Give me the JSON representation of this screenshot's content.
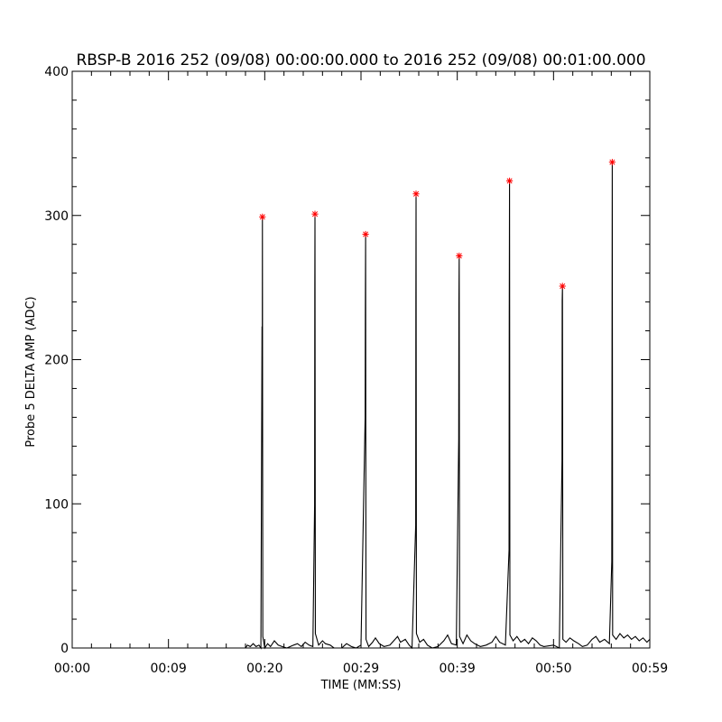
{
  "chart_data": {
    "type": "line",
    "title": "RBSP-B 2016 252 (09/08) 00:00:00.000 to 2016 252 (09/08) 00:01:00.000",
    "xlabel": "TIME (MM:SS)",
    "ylabel": "Probe 5 DELTA AMP (ADC)",
    "xlim": [
      0,
      60
    ],
    "ylim": [
      0,
      400
    ],
    "x_ticks": [
      {
        "value": 0,
        "label": "00:00"
      },
      {
        "value": 10,
        "label": "00:09"
      },
      {
        "value": 20,
        "label": "00:20"
      },
      {
        "value": 30,
        "label": "00:29"
      },
      {
        "value": 40,
        "label": "00:39"
      },
      {
        "value": 50,
        "label": "00:50"
      },
      {
        "value": 60,
        "label": "00:59"
      }
    ],
    "y_ticks": [
      {
        "value": 0,
        "label": "0"
      },
      {
        "value": 100,
        "label": "100"
      },
      {
        "value": 200,
        "label": "200"
      },
      {
        "value": 300,
        "label": "300"
      },
      {
        "value": 400,
        "label": "400"
      }
    ],
    "grid": false,
    "colors": {
      "line": "#000000",
      "peak_marker": "#ff0000"
    },
    "series": [
      {
        "points": [
          [
            0,
            0
          ],
          [
            18,
            0
          ],
          [
            18.2,
            2
          ],
          [
            18.5,
            1
          ],
          [
            18.8,
            3
          ],
          [
            19.1,
            1
          ],
          [
            19.4,
            2
          ],
          [
            19.6,
            0
          ],
          [
            19.72,
            223
          ],
          [
            19.74,
            170
          ],
          [
            19.76,
            299
          ],
          [
            19.8,
            8
          ],
          [
            20.0,
            0
          ],
          [
            20.3,
            3
          ],
          [
            20.6,
            1
          ],
          [
            21.0,
            5
          ],
          [
            21.4,
            2
          ],
          [
            21.8,
            1
          ],
          [
            22.3,
            0
          ],
          [
            23.0,
            2
          ],
          [
            23.4,
            3
          ],
          [
            23.8,
            1
          ],
          [
            24.2,
            4
          ],
          [
            24.6,
            2
          ],
          [
            25.0,
            1
          ],
          [
            25.18,
            99
          ],
          [
            25.2,
            248
          ],
          [
            25.22,
            301
          ],
          [
            25.26,
            10
          ],
          [
            25.6,
            2
          ],
          [
            26.0,
            5
          ],
          [
            26.3,
            3
          ],
          [
            26.8,
            2
          ],
          [
            27.2,
            0
          ],
          [
            28.0,
            0
          ],
          [
            28.5,
            3
          ],
          [
            29.0,
            1
          ],
          [
            29.5,
            0
          ],
          [
            30.0,
            2
          ],
          [
            30.43,
            160
          ],
          [
            30.45,
            231
          ],
          [
            30.48,
            287
          ],
          [
            30.52,
            6
          ],
          [
            30.8,
            1
          ],
          [
            31.2,
            4
          ],
          [
            31.5,
            7
          ],
          [
            31.9,
            3
          ],
          [
            32.4,
            1
          ],
          [
            33.0,
            2
          ],
          [
            33.4,
            5
          ],
          [
            33.8,
            8
          ],
          [
            34.1,
            4
          ],
          [
            34.6,
            6
          ],
          [
            35.0,
            2
          ],
          [
            35.3,
            0
          ],
          [
            35.68,
            85
          ],
          [
            35.7,
            242
          ],
          [
            35.72,
            315
          ],
          [
            35.76,
            10
          ],
          [
            36.1,
            4
          ],
          [
            36.5,
            6
          ],
          [
            36.9,
            2
          ],
          [
            37.4,
            0
          ],
          [
            38.0,
            1
          ],
          [
            38.6,
            5
          ],
          [
            39.0,
            9
          ],
          [
            39.4,
            3
          ],
          [
            39.9,
            2
          ],
          [
            40.15,
            145
          ],
          [
            40.17,
            238
          ],
          [
            40.2,
            272
          ],
          [
            40.24,
            8
          ],
          [
            40.6,
            3
          ],
          [
            41.0,
            9
          ],
          [
            41.4,
            5
          ],
          [
            41.8,
            3
          ],
          [
            42.4,
            1
          ],
          [
            43.0,
            2
          ],
          [
            43.6,
            4
          ],
          [
            44.0,
            8
          ],
          [
            44.4,
            4
          ],
          [
            45.0,
            2
          ],
          [
            45.38,
            68
          ],
          [
            45.4,
            232
          ],
          [
            45.43,
            324
          ],
          [
            45.47,
            9
          ],
          [
            45.8,
            5
          ],
          [
            46.2,
            8
          ],
          [
            46.6,
            4
          ],
          [
            47.0,
            6
          ],
          [
            47.4,
            3
          ],
          [
            47.8,
            7
          ],
          [
            48.2,
            5
          ],
          [
            48.6,
            2
          ],
          [
            49.0,
            1
          ],
          [
            50.0,
            2
          ],
          [
            50.6,
            0
          ],
          [
            50.88,
            130
          ],
          [
            50.9,
            241
          ],
          [
            50.93,
            251
          ],
          [
            50.97,
            6
          ],
          [
            51.3,
            4
          ],
          [
            51.7,
            7
          ],
          [
            52.1,
            5
          ],
          [
            52.6,
            3
          ],
          [
            53.0,
            1
          ],
          [
            53.5,
            2
          ],
          [
            54.0,
            6
          ],
          [
            54.4,
            8
          ],
          [
            54.8,
            4
          ],
          [
            55.3,
            6
          ],
          [
            55.8,
            3
          ],
          [
            56.05,
            60
          ],
          [
            56.08,
            228
          ],
          [
            56.1,
            337
          ],
          [
            56.14,
            9
          ],
          [
            56.5,
            6
          ],
          [
            56.9,
            10
          ],
          [
            57.3,
            7
          ],
          [
            57.7,
            9
          ],
          [
            58.1,
            6
          ],
          [
            58.5,
            8
          ],
          [
            58.9,
            5
          ],
          [
            59.3,
            7
          ],
          [
            59.7,
            4
          ],
          [
            60,
            6
          ]
        ]
      }
    ],
    "peaks": [
      {
        "x": 19.76,
        "y": 299
      },
      {
        "x": 25.22,
        "y": 301
      },
      {
        "x": 30.48,
        "y": 287
      },
      {
        "x": 35.72,
        "y": 315
      },
      {
        "x": 40.2,
        "y": 272
      },
      {
        "x": 45.43,
        "y": 324
      },
      {
        "x": 50.93,
        "y": 251
      },
      {
        "x": 56.1,
        "y": 337
      }
    ]
  }
}
